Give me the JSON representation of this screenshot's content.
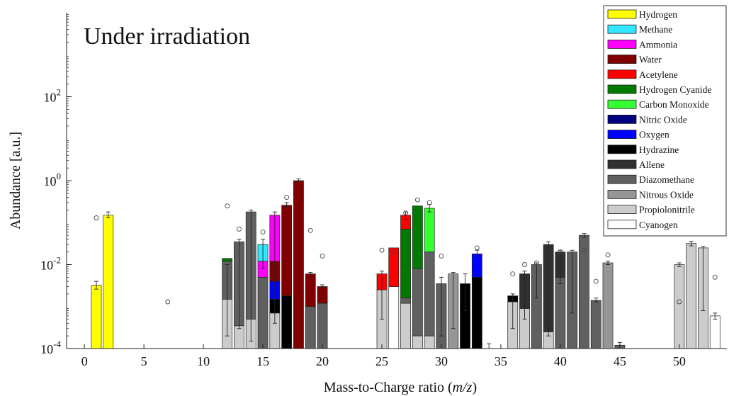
{
  "chart_data": {
    "type": "bar",
    "title": "Under irradiation",
    "xlabel_text": "Mass-to-Charge ratio (",
    "xlabel_italic": "m/z",
    "xlabel_close": ")",
    "ylabel": "Abundance [a.u.]",
    "yscale": "log",
    "ylim": [
      0.0001,
      10000
    ],
    "xlim": [
      -1.5,
      54
    ],
    "x_ticks": [
      0,
      5,
      10,
      15,
      20,
      25,
      30,
      35,
      40,
      45,
      50
    ],
    "y_ticks": [
      {
        "value": 0.0001,
        "base": "10",
        "exp": "-4"
      },
      {
        "value": 0.01,
        "base": "10",
        "exp": "-2"
      },
      {
        "value": 1,
        "base": "10",
        "exp": "0"
      },
      {
        "value": 100,
        "base": "10",
        "exp": "2"
      }
    ],
    "grid": false,
    "legend_position": "top-right",
    "colors": {
      "Hydrogen": "#ffff00",
      "Methane": "#33e6ff",
      "Ammonia": "#ff00ff",
      "Water": "#800000",
      "Acetylene": "#ff0000",
      "Hydrogen Cyanide": "#007a00",
      "Carbon Monoxide": "#33ff33",
      "Nitric Oxide": "#000080",
      "Oxygen": "#0000ff",
      "Hydrazine": "#000000",
      "Allene": "#303030",
      "Diazomethane": "#606060",
      "Nitrous Oxide": "#969696",
      "Propiolonitrile": "#cccccc",
      "Cyanogen": "#ffffff"
    },
    "legend": [
      "Hydrogen",
      "Methane",
      "Ammonia",
      "Water",
      "Acetylene",
      "Hydrogen Cyanide",
      "Carbon Monoxide",
      "Nitric Oxide",
      "Oxygen",
      "Hydrazine",
      "Allene",
      "Diazomethane",
      "Nitrous Oxide",
      "Propiolonitrile",
      "Cyanogen"
    ],
    "bars": [
      {
        "x": 1,
        "segments": [
          {
            "s": "Hydrogen",
            "to": 0.0032
          }
        ],
        "err": [
          0.0026,
          0.004
        ],
        "circle": 0.13
      },
      {
        "x": 2,
        "segments": [
          {
            "s": "Hydrogen",
            "to": 0.15
          }
        ],
        "err": [
          0.13,
          0.18
        ]
      },
      {
        "x": 12,
        "segments": [
          {
            "s": "Propiolonitrile",
            "to": 0.0015
          },
          {
            "s": "Diazomethane",
            "to": 0.012
          },
          {
            "s": "Hydrogen Cyanide",
            "to": 0.014
          }
        ],
        "err": [
          0.0002,
          0.01
        ],
        "circle": 0.25
      },
      {
        "x": 13,
        "segments": [
          {
            "s": "Propiolonitrile",
            "to": 0.00035
          },
          {
            "s": "Diazomethane",
            "to": 0.035
          }
        ],
        "err": [
          0.0003,
          0.04
        ],
        "circle": 0.07
      },
      {
        "x": 14,
        "segments": [
          {
            "s": "Propiolonitrile",
            "to": 0.0005
          },
          {
            "s": "Diazomethane",
            "to": 0.18
          }
        ],
        "err": [
          0.00015,
          0.2
        ]
      },
      {
        "x": 15,
        "segments": [
          {
            "s": "Diazomethane",
            "to": 0.005
          },
          {
            "s": "Ammonia",
            "to": 0.012
          },
          {
            "s": "Methane",
            "to": 0.03
          }
        ],
        "err": [
          0.008,
          0.04
        ],
        "circle": 0.06
      },
      {
        "x": 16,
        "segments": [
          {
            "s": "Propiolonitrile",
            "to": 0.0007
          },
          {
            "s": "Hydrazine",
            "to": 0.0015
          },
          {
            "s": "Oxygen",
            "to": 0.004
          },
          {
            "s": "Water",
            "to": 0.012
          },
          {
            "s": "Ammonia",
            "to": 0.15
          }
        ],
        "err": [
          0.0004,
          0.18
        ]
      },
      {
        "x": 17,
        "segments": [
          {
            "s": "Hydrazine",
            "to": 0.0018
          },
          {
            "s": "Water",
            "to": 0.26
          }
        ],
        "err": [
          0.23,
          0.3
        ],
        "circle": 0.4
      },
      {
        "x": 18,
        "segments": [
          {
            "s": "Water",
            "to": 1.0
          }
        ],
        "err": [
          0.95,
          1.1
        ]
      },
      {
        "x": 19,
        "segments": [
          {
            "s": "Diazomethane",
            "to": 0.001
          },
          {
            "s": "Water",
            "to": 0.006
          }
        ],
        "err": [
          0.0055,
          0.0065
        ],
        "circle": 0.065
      },
      {
        "x": 20,
        "segments": [
          {
            "s": "Diazomethane",
            "to": 0.0012
          },
          {
            "s": "Water",
            "to": 0.003
          }
        ],
        "err": [
          0.0028,
          0.0033
        ],
        "circle": 0.016
      },
      {
        "x": 25,
        "segments": [
          {
            "s": "Propiolonitrile",
            "to": 0.0025
          },
          {
            "s": "Acetylene",
            "to": 0.006
          }
        ],
        "err": [
          0.0005,
          0.007
        ],
        "circle": 0.022
      },
      {
        "x": 26,
        "segments": [
          {
            "s": "Cyanogen",
            "to": 0.003
          },
          {
            "s": "Acetylene",
            "to": 0.025
          }
        ],
        "circle": 0.02
      },
      {
        "x": 27,
        "segments": [
          {
            "s": "Propiolonitrile",
            "to": 0.0012
          },
          {
            "s": "Diazomethane",
            "to": 0.0016
          },
          {
            "s": "Hydrogen Cyanide",
            "to": 0.07
          },
          {
            "s": "Acetylene",
            "to": 0.15
          }
        ],
        "err": [
          0.12,
          0.18
        ],
        "circle": 0.17
      },
      {
        "x": 28,
        "segments": [
          {
            "s": "Propiolonitrile",
            "to": 0.0002
          },
          {
            "s": "Diazomethane",
            "to": 0.008
          },
          {
            "s": "Hydrogen Cyanide",
            "to": 0.25
          }
        ],
        "circle": 0.35
      },
      {
        "x": 29,
        "segments": [
          {
            "s": "Propiolonitrile",
            "to": 0.0002
          },
          {
            "s": "Diazomethane",
            "to": 0.02
          },
          {
            "s": "Carbon Monoxide",
            "to": 0.22
          }
        ],
        "err": [
          0.18,
          0.27
        ],
        "circle": 0.3
      },
      {
        "x": 30,
        "segments": [
          {
            "s": "Diazomethane",
            "to": 0.0035
          }
        ],
        "err": [
          0.0002,
          0.005
        ],
        "circle": 0.016
      },
      {
        "x": 31,
        "segments": [
          {
            "s": "Nitrous Oxide",
            "to": 0.006
          }
        ],
        "err": [
          0.0003,
          0.0065
        ]
      },
      {
        "x": 32,
        "segments": [
          {
            "s": "Hydrazine",
            "to": 0.0035
          }
        ],
        "err": [
          0.0008,
          0.006
        ]
      },
      {
        "x": 33,
        "segments": [
          {
            "s": "Hydrazine",
            "to": 0.005
          },
          {
            "s": "Oxygen",
            "to": 0.018
          }
        ],
        "err": [
          0.016,
          0.022
        ],
        "circle": 0.025
      },
      {
        "x": 34,
        "segments": [],
        "err": [
          0.0001,
          0.00013
        ]
      },
      {
        "x": 36,
        "segments": [
          {
            "s": "Propiolonitrile",
            "to": 0.0013
          },
          {
            "s": "Hydrazine",
            "to": 0.0018
          }
        ],
        "err": [
          0.0003,
          0.002
        ],
        "circle": 0.006
      },
      {
        "x": 37,
        "segments": [
          {
            "s": "Propiolonitrile",
            "to": 0.0009
          },
          {
            "s": "Allene",
            "to": 0.006
          }
        ],
        "err": [
          0.0005,
          0.007
        ],
        "circle": 0.01
      },
      {
        "x": 38,
        "segments": [
          {
            "s": "Diazomethane",
            "to": 0.01
          }
        ],
        "err": [
          0.0016,
          0.011
        ],
        "circle": 0.011
      },
      {
        "x": 39,
        "segments": [
          {
            "s": "Propiolonitrile",
            "to": 0.00025
          },
          {
            "s": "Allene",
            "to": 0.03
          }
        ],
        "err": [
          0.0002,
          0.035
        ]
      },
      {
        "x": 40,
        "segments": [
          {
            "s": "Diazomethane",
            "to": 0.005
          },
          {
            "s": "Allene",
            "to": 0.02
          }
        ],
        "err": [
          0.0035,
          0.022
        ],
        "circle": 0.02
      },
      {
        "x": 41,
        "segments": [
          {
            "s": "Diazomethane",
            "to": 0.02
          }
        ],
        "err": [
          0.0007,
          0.022
        ]
      },
      {
        "x": 42,
        "segments": [
          {
            "s": "Diazomethane",
            "to": 0.05
          }
        ],
        "err": [
          0.045,
          0.055
        ],
        "circle": 0.022
      },
      {
        "x": 43,
        "segments": [
          {
            "s": "Diazomethane",
            "to": 0.0014
          }
        ],
        "err": [
          0.0013,
          0.0016
        ],
        "circle": 0.004
      },
      {
        "x": 44,
        "segments": [
          {
            "s": "Nitrous Oxide",
            "to": 0.011
          }
        ],
        "err": [
          0.01,
          0.012
        ],
        "circle": 0.017
      },
      {
        "x": 45,
        "segments": [
          {
            "s": "Diazomethane",
            "to": 0.00012
          }
        ],
        "err": [
          0.0001,
          0.00014
        ]
      },
      {
        "x": 50,
        "segments": [
          {
            "s": "Propiolonitrile",
            "to": 0.01
          }
        ],
        "err": [
          0.009,
          0.011
        ],
        "circle": 0.0013
      },
      {
        "x": 51,
        "segments": [
          {
            "s": "Propiolonitrile",
            "to": 0.032
          }
        ],
        "err": [
          0.028,
          0.036
        ]
      },
      {
        "x": 52,
        "segments": [
          {
            "s": "Propiolonitrile",
            "to": 0.025
          }
        ],
        "err": [
          0.0008,
          0.027
        ]
      },
      {
        "x": 53,
        "segments": [
          {
            "s": "Cyanogen",
            "to": 0.0006
          }
        ],
        "err": [
          0.0005,
          0.0007
        ],
        "circle": 0.005
      }
    ],
    "lone_circles": [
      {
        "x": 7,
        "y": 0.0013
      }
    ]
  }
}
